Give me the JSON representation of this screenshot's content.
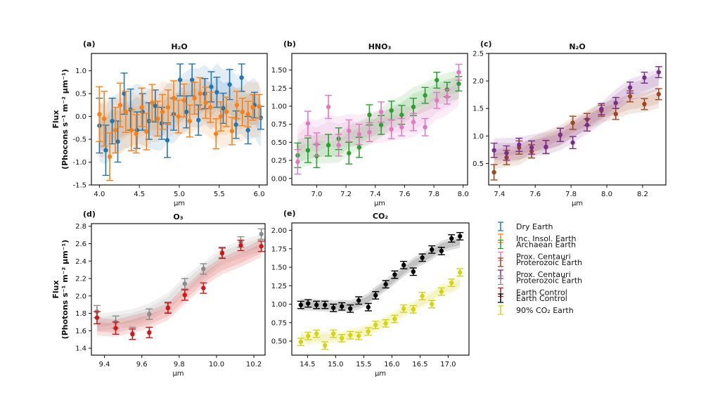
{
  "chart_data": [
    {
      "type": "scatter",
      "panel_label": "(a)",
      "title": "H₂O",
      "xlabel": "μm",
      "ylabel": [
        "Flux",
        "(Phocons s⁻¹ m⁻² μm⁻¹)"
      ],
      "xlim": [
        3.9,
        6.1
      ],
      "ylim": [
        -1.5,
        1.38
      ],
      "xticks": [
        4.0,
        4.5,
        5.0,
        5.5,
        6.0
      ],
      "xtick_labels": [
        "4.0",
        "4.5",
        "5.0",
        "5.5",
        "6.0"
      ],
      "yticks": [
        -1.5,
        -1.0,
        -0.5,
        0.0,
        0.5,
        1.0
      ],
      "ytick_labels": [
        "-1.5",
        "-1.0",
        "-0.5",
        "0.0",
        "0.5",
        "1.0"
      ],
      "series": [
        {
          "name": "Dry Earth",
          "color": "#1f77b4",
          "band_halfwidth": 0.65,
          "x": [
            4.0,
            4.08,
            4.16,
            4.23,
            4.31,
            4.39,
            4.47,
            4.54,
            4.62,
            4.7,
            4.78,
            4.85,
            4.93,
            5.01,
            5.09,
            5.16,
            5.24,
            5.32,
            5.4,
            5.47,
            5.55,
            5.63,
            5.71,
            5.78,
            5.86,
            5.94,
            6.02
          ],
          "y": [
            -0.2,
            -0.74,
            -0.1,
            -0.55,
            0.5,
            0.15,
            -0.3,
            0.1,
            -0.1,
            0.23,
            -0.15,
            -0.52,
            0.05,
            0.8,
            0.1,
            0.8,
            -0.08,
            0.5,
            0.65,
            0.53,
            0.18,
            0.7,
            -0.18,
            0.85,
            -0.3,
            0.25,
            -0.03
          ],
          "err": [
            0.6,
            0.55,
            0.5,
            0.45,
            0.45,
            0.45,
            0.4,
            0.4,
            0.4,
            0.35,
            0.35,
            0.38,
            0.35,
            0.35,
            0.35,
            0.35,
            0.33,
            0.33,
            0.33,
            0.33,
            0.33,
            0.33,
            0.3,
            0.3,
            0.3,
            0.28,
            0.25
          ]
        },
        {
          "name": "Inc. Insol. Earth",
          "color": "#ff7f0e",
          "band_halfwidth": 0.6,
          "x": [
            4.0,
            4.06,
            4.13,
            4.2,
            4.26,
            4.33,
            4.4,
            4.46,
            4.53,
            4.59,
            4.66,
            4.73,
            4.79,
            4.86,
            4.93,
            4.99,
            5.06,
            5.13,
            5.19,
            5.26,
            5.33,
            5.39,
            5.46,
            5.52,
            5.59,
            5.66,
            5.72,
            5.79,
            5.86,
            5.92,
            6.0
          ],
          "y": [
            0.05,
            -0.05,
            -0.88,
            -0.3,
            0.25,
            0.1,
            -0.3,
            -0.38,
            0.2,
            -0.33,
            0.3,
            -0.05,
            0.1,
            0.2,
            0.4,
            0.0,
            0.35,
            -0.1,
            0.4,
            0.5,
            0.3,
            0.2,
            -0.38,
            0.0,
            0.1,
            -0.32,
            0.25,
            0.1,
            0.05,
            0.2,
            0.22
          ],
          "err": [
            0.6,
            0.6,
            0.52,
            0.5,
            0.48,
            0.45,
            0.45,
            0.42,
            0.42,
            0.4,
            0.4,
            0.38,
            0.38,
            0.38,
            0.38,
            0.36,
            0.36,
            0.35,
            0.35,
            0.35,
            0.34,
            0.33,
            0.33,
            0.32,
            0.32,
            0.3,
            0.3,
            0.3,
            0.28,
            0.28,
            0.26
          ]
        }
      ]
    },
    {
      "type": "scatter",
      "panel_label": "(b)",
      "title": "HNO₃",
      "xlabel": "μm",
      "xlim": [
        6.83,
        8.03
      ],
      "ylim": [
        -0.09,
        1.73
      ],
      "xticks": [
        7.0,
        7.2,
        7.4,
        7.6,
        7.8,
        8.0
      ],
      "xtick_labels": [
        "7.0",
        "7.2",
        "7.4",
        "7.6",
        "7.8",
        "8.0"
      ],
      "yticks": [
        0.0,
        0.25,
        0.5,
        0.75,
        1.0,
        1.25,
        1.5
      ],
      "ytick_labels": [
        "0.00",
        "0.25",
        "0.50",
        "0.75",
        "1.00",
        "1.25",
        "1.50"
      ],
      "series": [
        {
          "name": "Archaean Earth",
          "color": "#2ca02c",
          "band_halfwidth": 0.2,
          "x": [
            6.87,
            6.94,
            7.0,
            7.08,
            7.15,
            7.22,
            7.29,
            7.36,
            7.44,
            7.51,
            7.58,
            7.66,
            7.74,
            7.82,
            7.89,
            7.97
          ],
          "y": [
            0.32,
            0.39,
            0.31,
            0.46,
            0.55,
            0.35,
            0.43,
            0.88,
            0.74,
            0.94,
            0.88,
            0.99,
            1.15,
            1.36,
            1.23,
            1.31
          ],
          "err": [
            0.17,
            0.17,
            0.16,
            0.15,
            0.15,
            0.15,
            0.14,
            0.14,
            0.13,
            0.13,
            0.13,
            0.12,
            0.11,
            0.11,
            0.1,
            0.1
          ]
        },
        {
          "name": "Prox. Centauri",
          "color": "#e377c2",
          "band_halfwidth": 0.22,
          "x": [
            6.87,
            6.94,
            7.0,
            7.08,
            7.15,
            7.22,
            7.29,
            7.36,
            7.44,
            7.51,
            7.58,
            7.66,
            7.74,
            7.82,
            7.89,
            7.97
          ],
          "y": [
            0.23,
            0.76,
            0.47,
            0.99,
            0.46,
            0.66,
            0.61,
            0.64,
            0.92,
            0.68,
            0.71,
            0.78,
            0.71,
            1.08,
            1.13,
            1.47
          ],
          "err": [
            0.17,
            0.17,
            0.16,
            0.16,
            0.15,
            0.15,
            0.14,
            0.13,
            0.14,
            0.13,
            0.12,
            0.12,
            0.12,
            0.11,
            0.1,
            0.11
          ]
        }
      ]
    },
    {
      "type": "scatter",
      "panel_label": "(c)",
      "title": "N₂O",
      "xlabel": "μm",
      "xlim": [
        7.34,
        8.33
      ],
      "ylim": [
        0.11,
        2.5
      ],
      "xticks": [
        7.4,
        7.6,
        7.8,
        8.0,
        8.2
      ],
      "xtick_labels": [
        "7.4",
        "7.6",
        "7.8",
        "8.0",
        "8.2"
      ],
      "yticks": [
        0.5,
        1.0,
        1.5,
        2.0,
        2.5
      ],
      "ytick_labels": [
        "0.5",
        "1.0",
        "1.5",
        "2.0",
        "2.5"
      ],
      "series": [
        {
          "name": "Proterozoic Earth",
          "color": "#a0461e",
          "band_halfwidth": 0.18,
          "x": [
            7.37,
            7.44,
            7.51,
            7.58,
            7.66,
            7.74,
            7.81,
            7.89,
            7.97,
            8.05,
            8.13,
            8.21,
            8.29
          ],
          "y": [
            0.34,
            0.61,
            0.79,
            0.72,
            0.8,
            1.02,
            1.24,
            1.3,
            1.46,
            1.4,
            1.72,
            1.58,
            1.76
          ],
          "err": [
            0.14,
            0.13,
            0.12,
            0.12,
            0.12,
            0.12,
            0.12,
            0.11,
            0.1,
            0.1,
            0.1,
            0.1,
            0.1
          ]
        },
        {
          "name": "Prox. Centauri",
          "color": "#7b2d8e",
          "band_halfwidth": 0.2,
          "x": [
            7.37,
            7.44,
            7.51,
            7.58,
            7.66,
            7.74,
            7.81,
            7.89,
            7.97,
            8.05,
            8.13,
            8.21,
            8.29
          ],
          "y": [
            0.74,
            0.69,
            0.84,
            0.79,
            0.8,
            1.02,
            0.88,
            1.2,
            1.49,
            1.6,
            1.88,
            2.06,
            2.16
          ],
          "err": [
            0.13,
            0.13,
            0.12,
            0.12,
            0.12,
            0.12,
            0.11,
            0.11,
            0.1,
            0.1,
            0.1,
            0.1,
            0.1
          ]
        }
      ]
    },
    {
      "type": "scatter",
      "panel_label": "(d)",
      "title": "O₃",
      "xlabel": "μm",
      "ylabel": [
        "Flux",
        "(Photons s⁻¹ m⁻² μm⁻¹)"
      ],
      "xlim": [
        9.33,
        10.26
      ],
      "ylim": [
        1.32,
        2.83
      ],
      "xticks": [
        9.4,
        9.6,
        9.8,
        10.0,
        10.2
      ],
      "xtick_labels": [
        "9.4",
        "9.6",
        "9.8",
        "10.0",
        "10.2"
      ],
      "yticks": [
        1.4,
        1.6,
        1.8,
        2.0,
        2.2,
        2.4,
        2.6,
        2.8
      ],
      "ytick_labels": [
        "1.4",
        "1.6",
        "1.8",
        "2.0",
        "2.2",
        "2.4",
        "2.6",
        "2.8"
      ],
      "series": [
        {
          "name": "Proterozoic Earth",
          "color": "#8c8c8c",
          "band_halfwidth": 0.1,
          "x": [
            9.36,
            9.46,
            9.55,
            9.64,
            9.74,
            9.83,
            9.93,
            10.03,
            10.13,
            10.24
          ],
          "y": [
            1.82,
            1.7,
            1.57,
            1.79,
            1.87,
            2.14,
            2.31,
            2.5,
            2.62,
            2.71
          ],
          "err": [
            0.07,
            0.07,
            0.07,
            0.06,
            0.06,
            0.06,
            0.06,
            0.06,
            0.06,
            0.06
          ]
        },
        {
          "name": "Earth Control",
          "color": "#d61515",
          "band_halfwidth": 0.1,
          "x": [
            9.36,
            9.46,
            9.55,
            9.64,
            9.74,
            9.83,
            9.93,
            10.03,
            10.13,
            10.24
          ],
          "y": [
            1.75,
            1.63,
            1.56,
            1.58,
            1.86,
            2.01,
            2.09,
            2.49,
            2.58,
            2.57
          ],
          "err": [
            0.07,
            0.07,
            0.06,
            0.06,
            0.06,
            0.06,
            0.06,
            0.06,
            0.06,
            0.06
          ]
        }
      ]
    },
    {
      "type": "scatter",
      "panel_label": "(e)",
      "title": "CO₂",
      "xlabel": "μm",
      "xlim": [
        14.22,
        17.37
      ],
      "ylim": [
        0.31,
        2.1
      ],
      "xticks": [
        14.5,
        15.0,
        15.5,
        16.0,
        16.5,
        17.0
      ],
      "xtick_labels": [
        "14.5",
        "15.0",
        "15.5",
        "16.0",
        "16.5",
        "17.0"
      ],
      "yticks": [
        0.5,
        0.75,
        1.0,
        1.25,
        1.5,
        1.75,
        2.0
      ],
      "ytick_labels": [
        "0.50",
        "0.75",
        "1.00",
        "1.25",
        "1.50",
        "1.75",
        "2.00"
      ],
      "series": [
        {
          "name": "Earth Control",
          "color": "#000000",
          "band_halfwidth": 0.08,
          "x": [
            14.38,
            14.51,
            14.66,
            14.81,
            14.96,
            15.11,
            15.26,
            15.41,
            15.58,
            15.71,
            15.89,
            16.05,
            16.21,
            16.38,
            16.54,
            16.71,
            16.88,
            17.06,
            17.21
          ],
          "y": [
            0.99,
            1.01,
            0.99,
            0.99,
            0.95,
            0.97,
            0.94,
            1.05,
            0.96,
            1.12,
            1.27,
            1.4,
            1.53,
            1.44,
            1.63,
            1.74,
            1.72,
            1.89,
            1.92
          ],
          "err": [
            0.05,
            0.05,
            0.05,
            0.05,
            0.05,
            0.05,
            0.05,
            0.05,
            0.05,
            0.05,
            0.05,
            0.05,
            0.05,
            0.05,
            0.05,
            0.05,
            0.05,
            0.05,
            0.05
          ]
        },
        {
          "name": "90% CO₂ Earth",
          "color": "#d4d40f",
          "band_halfwidth": 0.08,
          "x": [
            14.38,
            14.51,
            14.66,
            14.81,
            14.96,
            15.11,
            15.26,
            15.41,
            15.58,
            15.71,
            15.89,
            16.05,
            16.21,
            16.38,
            16.54,
            16.71,
            16.88,
            17.06,
            17.21
          ],
          "y": [
            0.49,
            0.57,
            0.6,
            0.44,
            0.6,
            0.54,
            0.58,
            0.57,
            0.63,
            0.72,
            0.74,
            0.8,
            0.94,
            0.93,
            1.11,
            1.0,
            1.17,
            1.29,
            1.43
          ],
          "err": [
            0.05,
            0.05,
            0.05,
            0.05,
            0.05,
            0.05,
            0.05,
            0.05,
            0.05,
            0.05,
            0.05,
            0.05,
            0.05,
            0.05,
            0.05,
            0.05,
            0.05,
            0.05,
            0.05
          ]
        }
      ]
    }
  ],
  "legend": {
    "placement": "right",
    "items": [
      {
        "label": "Dry Earth",
        "color": "#1f77b4"
      },
      {
        "label": "Inc. Insol. Earth",
        "color": "#ff7f0e"
      },
      {
        "label": "Archaean Earth",
        "color": "#2ca02c"
      },
      {
        "label": "Prox. Centauri",
        "color": "#e377c2"
      },
      {
        "label": "Proterozoic Earth",
        "color": "#a0461e"
      },
      {
        "label": "Prox. Centauri",
        "color": "#7b2d8e"
      },
      {
        "label": "Proterozoic Earth",
        "color": "#8c8c8c"
      },
      {
        "label": "Earth Control",
        "color": "#d61515"
      },
      {
        "label": "Earth Control",
        "color": "#000000"
      },
      {
        "label": "90% CO₂ Earth",
        "color": "#d4d40f"
      }
    ]
  }
}
